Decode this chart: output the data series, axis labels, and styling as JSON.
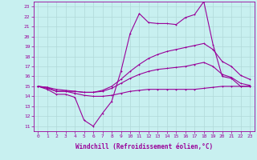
{
  "background_color": "#c8f0f0",
  "grid_color": "#b0d8d8",
  "line_color": "#990099",
  "markersize": 2,
  "linewidth": 0.8,
  "xlabel": "Windchill (Refroidissement éolien,°C)",
  "xlabel_fontsize": 5.5,
  "tick_fontsize": 4.5,
  "xlim": [
    -0.5,
    23.5
  ],
  "ylim": [
    10.5,
    23.5
  ],
  "yticks": [
    11,
    12,
    13,
    14,
    15,
    16,
    17,
    18,
    19,
    20,
    21,
    22,
    23
  ],
  "xticks": [
    0,
    1,
    2,
    3,
    4,
    5,
    6,
    7,
    8,
    9,
    10,
    11,
    12,
    13,
    14,
    15,
    16,
    17,
    18,
    19,
    20,
    21,
    22,
    23
  ],
  "series": [
    [
      15.0,
      14.7,
      14.2,
      14.2,
      13.9,
      11.6,
      11.0,
      12.3,
      13.5,
      16.5,
      20.3,
      22.3,
      21.4,
      21.3,
      21.3,
      21.2,
      21.9,
      22.2,
      23.5,
      19.2,
      16.0,
      15.8,
      15.0,
      15.0
    ],
    [
      15.0,
      14.8,
      14.5,
      14.5,
      14.3,
      14.1,
      14.0,
      14.0,
      14.1,
      14.3,
      14.5,
      14.6,
      14.7,
      14.7,
      14.7,
      14.7,
      14.7,
      14.7,
      14.8,
      14.9,
      15.0,
      15.0,
      15.0,
      15.0
    ],
    [
      15.0,
      14.9,
      14.5,
      14.5,
      14.5,
      14.4,
      14.4,
      14.5,
      14.8,
      15.3,
      15.8,
      16.2,
      16.5,
      16.7,
      16.8,
      16.9,
      17.0,
      17.2,
      17.4,
      17.0,
      16.2,
      15.9,
      15.3,
      15.1
    ],
    [
      15.0,
      14.9,
      14.7,
      14.6,
      14.5,
      14.4,
      14.4,
      14.6,
      15.0,
      15.7,
      16.5,
      17.2,
      17.8,
      18.2,
      18.5,
      18.7,
      18.9,
      19.1,
      19.3,
      18.7,
      17.5,
      17.0,
      16.1,
      15.7
    ]
  ]
}
